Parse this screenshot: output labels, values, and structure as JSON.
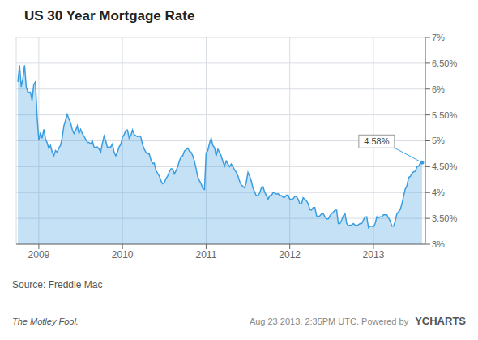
{
  "chart_data": {
    "type": "area",
    "title": "US 30 Year Mortgage Rate",
    "color": "#3a9de0",
    "grid": true,
    "xlim": [
      2008.73,
      2013.62
    ],
    "xticks": [
      2009,
      2010,
      2011,
      2012,
      2013
    ],
    "ylim": [
      3.0,
      7.0
    ],
    "yticks": [
      {
        "value": 3.0,
        "label": "3%"
      },
      {
        "value": 3.5,
        "label": "3.50%"
      },
      {
        "value": 4.0,
        "label": "4%"
      },
      {
        "value": 4.5,
        "label": "4.50%"
      },
      {
        "value": 5.0,
        "label": "5%"
      },
      {
        "value": 5.5,
        "label": "5.50%"
      },
      {
        "value": 6.0,
        "label": "6%"
      },
      {
        "value": 6.5,
        "label": "6.50%"
      },
      {
        "value": 7.0,
        "label": "7%"
      }
    ],
    "annotations": [
      {
        "x": 2013.58,
        "y": 4.58,
        "text": "4.58%"
      }
    ],
    "source": "Source: Freddie Mac",
    "footer": [
      "The Motley Fool.",
      "Aug 23 2013, 2:35PM UTC.  Powered by",
      "YCHARTS"
    ],
    "x": [
      2008.75,
      2008.77,
      2008.79,
      2008.81,
      2008.83,
      2008.85,
      2008.87,
      2008.9,
      2008.92,
      2008.94,
      2008.96,
      2008.98,
      2009.0,
      2009.02,
      2009.04,
      2009.06,
      2009.08,
      2009.1,
      2009.12,
      2009.14,
      2009.16,
      2009.18,
      2009.2,
      2009.22,
      2009.24,
      2009.26,
      2009.28,
      2009.3,
      2009.32,
      2009.34,
      2009.36,
      2009.38,
      2009.4,
      2009.42,
      2009.44,
      2009.46,
      2009.48,
      2009.5,
      2009.52,
      2009.54,
      2009.56,
      2009.58,
      2009.6,
      2009.62,
      2009.64,
      2009.66,
      2009.68,
      2009.7,
      2009.72,
      2009.74,
      2009.76,
      2009.78,
      2009.8,
      2009.82,
      2009.84,
      2009.86,
      2009.88,
      2009.9,
      2009.92,
      2009.94,
      2009.96,
      2009.98,
      2010.0,
      2010.02,
      2010.04,
      2010.06,
      2010.08,
      2010.1,
      2010.12,
      2010.14,
      2010.16,
      2010.18,
      2010.2,
      2010.22,
      2010.24,
      2010.26,
      2010.28,
      2010.3,
      2010.32,
      2010.34,
      2010.36,
      2010.38,
      2010.4,
      2010.42,
      2010.44,
      2010.46,
      2010.48,
      2010.5,
      2010.52,
      2010.54,
      2010.56,
      2010.58,
      2010.6,
      2010.62,
      2010.64,
      2010.66,
      2010.68,
      2010.7,
      2010.72,
      2010.74,
      2010.76,
      2010.78,
      2010.8,
      2010.82,
      2010.84,
      2010.86,
      2010.88,
      2010.9,
      2010.92,
      2010.94,
      2010.96,
      2010.98,
      2011.0,
      2011.02,
      2011.04,
      2011.06,
      2011.08,
      2011.1,
      2011.12,
      2011.14,
      2011.16,
      2011.18,
      2011.2,
      2011.22,
      2011.24,
      2011.26,
      2011.28,
      2011.3,
      2011.32,
      2011.34,
      2011.36,
      2011.38,
      2011.4,
      2011.42,
      2011.44,
      2011.46,
      2011.48,
      2011.5,
      2011.52,
      2011.54,
      2011.56,
      2011.58,
      2011.6,
      2011.62,
      2011.64,
      2011.66,
      2011.68,
      2011.7,
      2011.72,
      2011.74,
      2011.76,
      2011.78,
      2011.8,
      2011.82,
      2011.84,
      2011.86,
      2011.88,
      2011.9,
      2011.92,
      2011.94,
      2011.96,
      2011.98,
      2012.0,
      2012.02,
      2012.04,
      2012.06,
      2012.08,
      2012.1,
      2012.12,
      2012.14,
      2012.16,
      2012.18,
      2012.2,
      2012.22,
      2012.24,
      2012.26,
      2012.28,
      2012.3,
      2012.32,
      2012.34,
      2012.36,
      2012.38,
      2012.4,
      2012.42,
      2012.44,
      2012.46,
      2012.48,
      2012.5,
      2012.52,
      2012.54,
      2012.56,
      2012.58,
      2012.6,
      2012.62,
      2012.64,
      2012.66,
      2012.68,
      2012.7,
      2012.72,
      2012.74,
      2012.76,
      2012.78,
      2012.8,
      2012.82,
      2012.84,
      2012.86,
      2012.88,
      2012.9,
      2012.92,
      2012.94,
      2012.96,
      2012.98,
      2013.0,
      2013.02,
      2013.04,
      2013.06,
      2013.08,
      2013.1,
      2013.12,
      2013.14,
      2013.16,
      2013.18,
      2013.2,
      2013.22,
      2013.24,
      2013.26,
      2013.28,
      2013.3,
      2013.32,
      2013.34,
      2013.36,
      2013.38,
      2013.4,
      2013.42,
      2013.44,
      2013.46,
      2013.48,
      2013.5,
      2013.52,
      2013.54,
      2013.56,
      2013.58
    ],
    "values": [
      6.14,
      6.46,
      6.04,
      6.2,
      6.46,
      6.04,
      5.94,
      5.94,
      5.78,
      6.09,
      6.14,
      5.47,
      5.01,
      5.16,
      5.05,
      5.22,
      5.04,
      4.96,
      4.85,
      4.91,
      4.78,
      4.71,
      4.81,
      4.78,
      4.86,
      4.91,
      5.06,
      5.29,
      5.4,
      5.51,
      5.42,
      5.35,
      5.22,
      5.14,
      5.2,
      5.29,
      5.14,
      5.22,
      5.14,
      5.09,
      5.03,
      4.97,
      4.97,
      4.94,
      5.0,
      4.88,
      4.87,
      4.88,
      4.84,
      4.78,
      4.95,
      5.09,
      5.0,
      4.87,
      4.88,
      4.88,
      4.94,
      4.78,
      4.71,
      4.78,
      4.88,
      4.93,
      5.07,
      5.12,
      5.2,
      5.21,
      5.05,
      5.1,
      5.21,
      5.12,
      5.1,
      5.08,
      5.1,
      5.07,
      4.93,
      4.84,
      4.78,
      4.75,
      4.75,
      4.63,
      4.56,
      4.57,
      4.43,
      4.37,
      4.32,
      4.23,
      4.17,
      4.19,
      4.27,
      4.32,
      4.4,
      4.46,
      4.46,
      4.36,
      4.42,
      4.5,
      4.61,
      4.69,
      4.71,
      4.8,
      4.83,
      4.86,
      4.8,
      4.78,
      4.71,
      4.61,
      4.46,
      4.3,
      4.23,
      4.17,
      4.08,
      4.06,
      4.77,
      4.81,
      4.95,
      5.05,
      4.91,
      4.87,
      4.71,
      4.84,
      4.78,
      4.71,
      4.6,
      4.51,
      4.61,
      4.55,
      4.5,
      4.55,
      4.5,
      4.44,
      4.39,
      4.32,
      4.22,
      4.15,
      4.12,
      4.09,
      4.2,
      4.39,
      4.32,
      4.22,
      4.09,
      4.01,
      3.94,
      3.94,
      3.99,
      4.09,
      4.11,
      4.01,
      3.94,
      3.87,
      3.94,
      3.94,
      4.0,
      3.99,
      3.97,
      3.98,
      3.94,
      3.94,
      3.91,
      3.91,
      3.95,
      3.95,
      3.87,
      3.87,
      3.88,
      3.92,
      3.92,
      3.87,
      3.78,
      3.78,
      3.9,
      3.87,
      3.84,
      3.78,
      3.67,
      3.66,
      3.71,
      3.71,
      3.55,
      3.53,
      3.55,
      3.59,
      3.59,
      3.53,
      3.49,
      3.49,
      3.55,
      3.59,
      3.62,
      3.66,
      3.66,
      3.4,
      3.4,
      3.47,
      3.55,
      3.59,
      3.4,
      3.36,
      3.37,
      3.37,
      3.4,
      3.37,
      3.36,
      3.38,
      3.4,
      3.4,
      3.47,
      3.53,
      3.53,
      3.32,
      3.35,
      3.35,
      3.34,
      3.4,
      3.53,
      3.51,
      3.53,
      3.53,
      3.57,
      3.57,
      3.57,
      3.51,
      3.45,
      3.35,
      3.35,
      3.45,
      3.59,
      3.63,
      3.67,
      3.78,
      3.93,
      4.07,
      4.13,
      4.29,
      4.31,
      4.37,
      4.4,
      4.41,
      4.5,
      4.51,
      4.57,
      4.58
    ]
  }
}
